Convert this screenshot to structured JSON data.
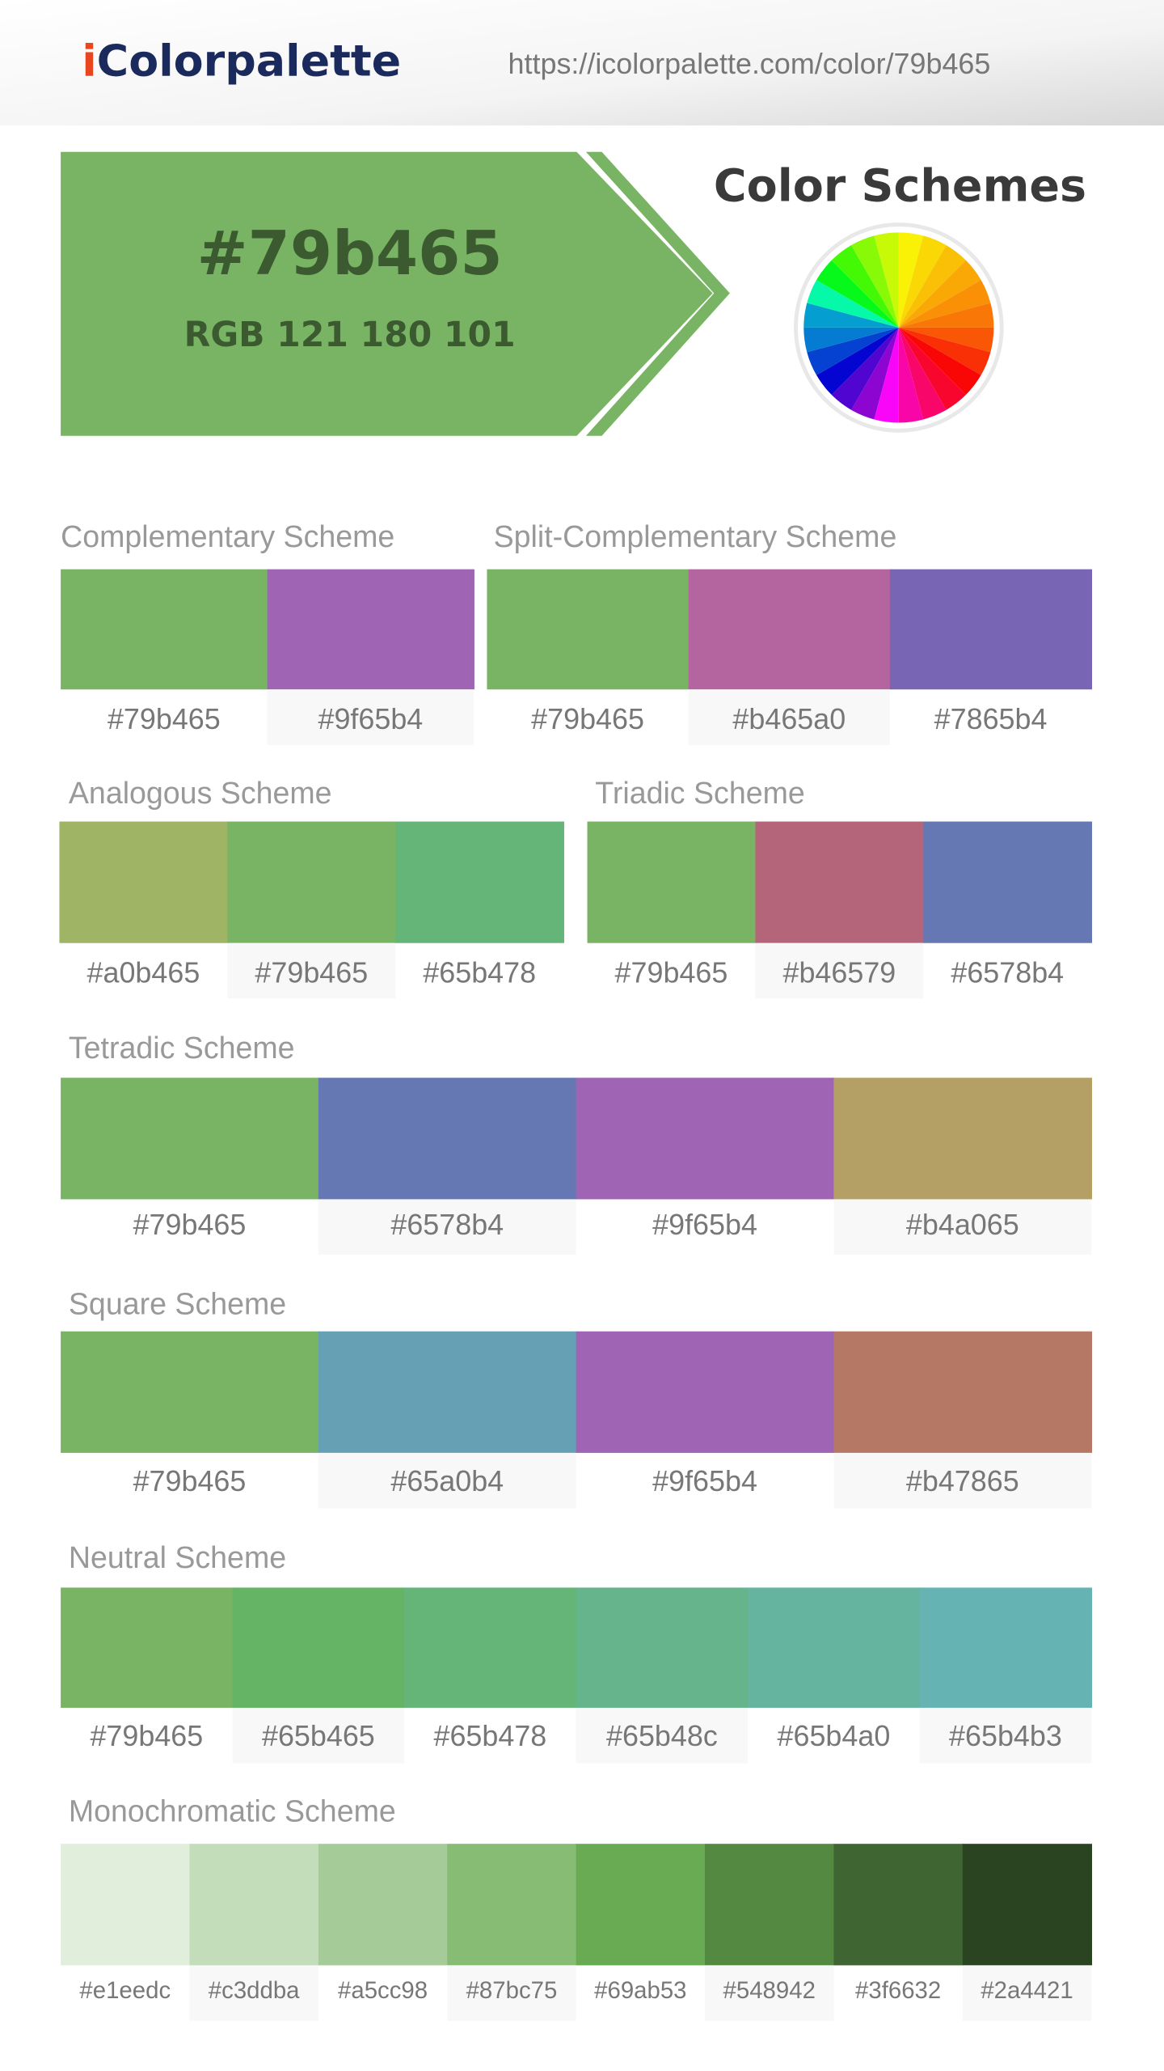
{
  "header": {
    "logo": {
      "prefix": "i",
      "name": "Colorpalette"
    },
    "url": "https://icolorpalette.com/color/79b465"
  },
  "hero": {
    "hex": "#79b465",
    "rgb": "RGB 121 180 101",
    "title": "Color Schemes"
  },
  "schemes": [
    {
      "title": "Complementary Scheme",
      "colors": [
        "#79b465",
        "#9f65b4"
      ]
    },
    {
      "title": "Split-Complementary Scheme",
      "colors": [
        "#79b465",
        "#b465a0",
        "#7865b4"
      ]
    },
    {
      "title": "Analogous Scheme",
      "colors": [
        "#a0b465",
        "#79b465",
        "#65b478"
      ]
    },
    {
      "title": "Triadic Scheme",
      "colors": [
        "#79b465",
        "#b46579",
        "#6578b4"
      ]
    },
    {
      "title": "Tetradic Scheme",
      "colors": [
        "#79b465",
        "#6578b4",
        "#9f65b4",
        "#b4a065"
      ]
    },
    {
      "title": "Square Scheme",
      "colors": [
        "#79b465",
        "#65a0b4",
        "#9f65b4",
        "#b47865"
      ]
    },
    {
      "title": "Neutral Scheme",
      "colors": [
        "#79b465",
        "#65b465",
        "#65b478",
        "#65b48c",
        "#65b4a0",
        "#65b4b3"
      ]
    },
    {
      "title": "Monochromatic Scheme",
      "colors": [
        "#e1eedc",
        "#c3ddba",
        "#a5cc98",
        "#87bc75",
        "#69ab53",
        "#548942",
        "#3f6632",
        "#2a4421"
      ]
    }
  ]
}
